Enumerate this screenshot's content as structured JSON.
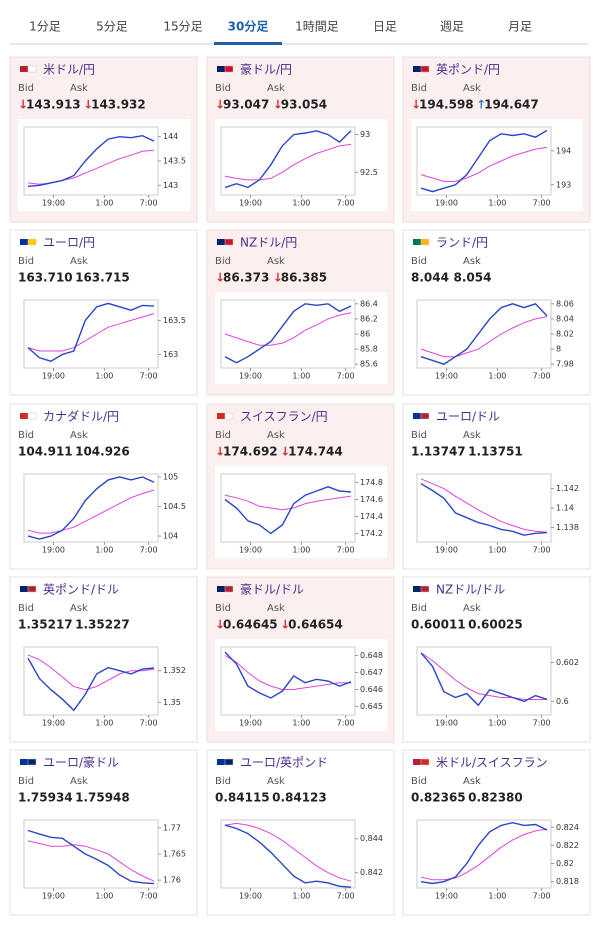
{
  "tabs": {
    "items": [
      "1分足",
      "5分足",
      "15分足",
      "30分足",
      "1時間足",
      "日足",
      "週足",
      "月足"
    ],
    "active": 3
  },
  "colors": {
    "price": "#2a45c8",
    "ma": "#dd44dd",
    "down": "#d33333",
    "up": "#2b7bd6"
  },
  "cards": [
    {
      "name": "米ドル/円",
      "bid_label": "Bid",
      "ask_label": "Ask",
      "bid": "143.913",
      "ask": "143.932",
      "bid_dir": "down",
      "ask_dir": "down",
      "chart": {
        "type": "line",
        "ylim": [
          142.8,
          144.2
        ],
        "yticks": [
          143,
          143.5,
          144
        ],
        "x_labels": [
          "19:00",
          "1:00",
          "7:00"
        ],
        "values": [
          142.98,
          143.0,
          143.05,
          143.1,
          143.2,
          143.5,
          143.75,
          143.95,
          144.0,
          143.98,
          144.02,
          143.91
        ],
        "ma": [
          143.05,
          143.02,
          143.05,
          143.1,
          143.15,
          143.25,
          143.35,
          143.45,
          143.55,
          143.62,
          143.7,
          143.72
        ]
      }
    },
    {
      "name": "豪ドル/円",
      "bid_label": "Bid",
      "ask_label": "Ask",
      "bid": "93.047",
      "ask": "93.054",
      "bid_dir": "down",
      "ask_dir": "down",
      "chart": {
        "type": "line",
        "ylim": [
          92.2,
          93.1
        ],
        "yticks": [
          92.5,
          93
        ],
        "x_labels": [
          "19:00",
          "1:00",
          "7:00"
        ],
        "values": [
          92.3,
          92.35,
          92.3,
          92.4,
          92.6,
          92.85,
          93.0,
          93.02,
          93.05,
          93.0,
          92.9,
          93.05
        ],
        "ma": [
          92.45,
          92.42,
          92.4,
          92.4,
          92.42,
          92.5,
          92.6,
          92.68,
          92.75,
          92.8,
          92.85,
          92.87
        ]
      }
    },
    {
      "name": "英ポンド/円",
      "bid_label": "Bid",
      "ask_label": "Ask",
      "bid": "194.598",
      "ask": "194.647",
      "bid_dir": "down",
      "ask_dir": "up",
      "chart": {
        "type": "line",
        "ylim": [
          192.7,
          194.7
        ],
        "yticks": [
          193,
          194
        ],
        "x_labels": [
          "19:00",
          "1:00",
          "7:00"
        ],
        "values": [
          192.9,
          192.8,
          192.9,
          193.0,
          193.3,
          193.8,
          194.3,
          194.5,
          194.45,
          194.5,
          194.4,
          194.6
        ],
        "ma": [
          193.3,
          193.2,
          193.1,
          193.1,
          193.2,
          193.35,
          193.55,
          193.7,
          193.85,
          193.95,
          194.05,
          194.1
        ]
      }
    },
    {
      "name": "ユーロ/円",
      "bid_label": "Bid",
      "ask_label": "Ask",
      "bid": "163.710",
      "ask": "163.715",
      "bid_dir": null,
      "ask_dir": null,
      "chart": {
        "type": "line",
        "ylim": [
          162.8,
          163.8
        ],
        "yticks": [
          163,
          163.5
        ],
        "x_labels": [
          "19:00",
          "1:00",
          "7:00"
        ],
        "values": [
          163.1,
          162.95,
          162.9,
          163.0,
          163.05,
          163.5,
          163.7,
          163.75,
          163.7,
          163.65,
          163.72,
          163.71
        ],
        "ma": [
          163.1,
          163.05,
          163.05,
          163.05,
          163.1,
          163.2,
          163.3,
          163.4,
          163.45,
          163.5,
          163.55,
          163.6
        ]
      }
    },
    {
      "name": "NZドル/円",
      "bid_label": "Bid",
      "ask_label": "Ask",
      "bid": "86.373",
      "ask": "86.385",
      "bid_dir": "down",
      "ask_dir": "down",
      "chart": {
        "type": "line",
        "ylim": [
          85.55,
          86.45
        ],
        "yticks": [
          85.6,
          85.8,
          86,
          86.2,
          86.4
        ],
        "x_labels": [
          "19:00",
          "1:00",
          "7:00"
        ],
        "values": [
          85.7,
          85.62,
          85.7,
          85.8,
          85.9,
          86.1,
          86.3,
          86.4,
          86.38,
          86.4,
          86.3,
          86.37
        ],
        "ma": [
          86.0,
          85.95,
          85.9,
          85.85,
          85.85,
          85.88,
          85.95,
          86.05,
          86.12,
          86.2,
          86.25,
          86.28
        ]
      }
    },
    {
      "name": "ランド/円",
      "bid_label": "Bid",
      "ask_label": "Ask",
      "bid": "8.044",
      "ask": "8.054",
      "bid_dir": null,
      "ask_dir": null,
      "chart": {
        "type": "line",
        "ylim": [
          7.975,
          8.065
        ],
        "yticks": [
          7.98,
          8,
          8.02,
          8.04,
          8.06
        ],
        "x_labels": [
          "19:00",
          "1:00",
          "7:00"
        ],
        "values": [
          7.99,
          7.985,
          7.98,
          7.99,
          8.0,
          8.02,
          8.04,
          8.055,
          8.06,
          8.055,
          8.06,
          8.044
        ],
        "ma": [
          8.0,
          7.995,
          7.99,
          7.99,
          7.995,
          8.0,
          8.01,
          8.02,
          8.028,
          8.035,
          8.04,
          8.043
        ]
      }
    },
    {
      "name": "カナダドル/円",
      "bid_label": "Bid",
      "ask_label": "Ask",
      "bid": "104.911",
      "ask": "104.926",
      "bid_dir": null,
      "ask_dir": null,
      "chart": {
        "type": "line",
        "ylim": [
          103.9,
          105.05
        ],
        "yticks": [
          104,
          104.5,
          105
        ],
        "x_labels": [
          "19:00",
          "1:00",
          "7:00"
        ],
        "values": [
          104.0,
          103.95,
          104.0,
          104.1,
          104.3,
          104.6,
          104.8,
          104.95,
          105.0,
          104.95,
          105.0,
          104.91
        ],
        "ma": [
          104.1,
          104.05,
          104.05,
          104.1,
          104.15,
          104.25,
          104.35,
          104.45,
          104.55,
          104.65,
          104.72,
          104.78
        ]
      }
    },
    {
      "name": "スイスフラン/円",
      "bid_label": "Bid",
      "ask_label": "Ask",
      "bid": "174.692",
      "ask": "174.744",
      "bid_dir": "down",
      "ask_dir": "down",
      "chart": {
        "type": "line",
        "ylim": [
          174.1,
          174.9
        ],
        "yticks": [
          174.2,
          174.4,
          174.6,
          174.8
        ],
        "x_labels": [
          "19:00",
          "1:00",
          "7:00"
        ],
        "values": [
          174.6,
          174.5,
          174.35,
          174.3,
          174.2,
          174.3,
          174.55,
          174.65,
          174.7,
          174.75,
          174.7,
          174.69
        ],
        "ma": [
          174.65,
          174.62,
          174.58,
          174.52,
          174.5,
          174.48,
          174.5,
          174.55,
          174.58,
          174.6,
          174.62,
          174.64
        ]
      }
    },
    {
      "name": "ユーロ/ドル",
      "bid_label": "Bid",
      "ask_label": "Ask",
      "bid": "1.13747",
      "ask": "1.13751",
      "bid_dir": null,
      "ask_dir": null,
      "chart": {
        "type": "line",
        "ylim": [
          1.1365,
          1.1435
        ],
        "yticks": [
          1.138,
          1.14,
          1.142
        ],
        "x_labels": [
          "19:00",
          "1:00",
          "7:00"
        ],
        "values": [
          1.1425,
          1.1418,
          1.141,
          1.1395,
          1.139,
          1.1385,
          1.1382,
          1.1378,
          1.1376,
          1.1372,
          1.1374,
          1.13747
        ],
        "ma": [
          1.143,
          1.1425,
          1.142,
          1.1412,
          1.1405,
          1.1398,
          1.1392,
          1.1386,
          1.1382,
          1.1378,
          1.1376,
          1.1375
        ]
      }
    },
    {
      "name": "英ポンド/ドル",
      "bid_label": "Bid",
      "ask_label": "Ask",
      "bid": "1.35217",
      "ask": "1.35227",
      "bid_dir": null,
      "ask_dir": null,
      "chart": {
        "type": "line",
        "ylim": [
          1.3492,
          1.3535
        ],
        "yticks": [
          1.35,
          1.352
        ],
        "x_labels": [
          "19:00",
          "1:00",
          "7:00"
        ],
        "values": [
          1.3528,
          1.3515,
          1.3508,
          1.3502,
          1.3495,
          1.3505,
          1.3518,
          1.3522,
          1.352,
          1.3518,
          1.3521,
          1.35217
        ],
        "ma": [
          1.353,
          1.3527,
          1.3522,
          1.3516,
          1.351,
          1.3508,
          1.351,
          1.3514,
          1.3518,
          1.352,
          1.352,
          1.3521
        ]
      }
    },
    {
      "name": "豪ドル/ドル",
      "bid_label": "Bid",
      "ask_label": "Ask",
      "bid": "0.64645",
      "ask": "0.64654",
      "bid_dir": "down",
      "ask_dir": "down",
      "chart": {
        "type": "line",
        "ylim": [
          0.6445,
          0.6485
        ],
        "yticks": [
          0.645,
          0.646,
          0.647,
          0.648
        ],
        "x_labels": [
          "19:00",
          "1:00",
          "7:00"
        ],
        "values": [
          0.6482,
          0.6475,
          0.6462,
          0.6458,
          0.6455,
          0.6459,
          0.6468,
          0.6464,
          0.6466,
          0.6465,
          0.6462,
          0.64645
        ],
        "ma": [
          0.648,
          0.6476,
          0.647,
          0.6465,
          0.6462,
          0.646,
          0.646,
          0.6461,
          0.6462,
          0.6463,
          0.6464,
          0.6464
        ]
      }
    },
    {
      "name": "NZドル/ドル",
      "bid_label": "Bid",
      "ask_label": "Ask",
      "bid": "0.60011",
      "ask": "0.60025",
      "bid_dir": null,
      "ask_dir": null,
      "chart": {
        "type": "line",
        "ylim": [
          0.5993,
          0.6028
        ],
        "yticks": [
          0.6,
          0.602
        ],
        "x_labels": [
          "19:00",
          "1:00",
          "7:00"
        ],
        "values": [
          0.6025,
          0.6018,
          0.6005,
          0.6002,
          0.6004,
          0.5998,
          0.6006,
          0.6004,
          0.6002,
          0.6,
          0.6003,
          0.60011
        ],
        "ma": [
          0.6025,
          0.6021,
          0.6016,
          0.6011,
          0.6007,
          0.6004,
          0.6003,
          0.6002,
          0.6002,
          0.6001,
          0.6001,
          0.6001
        ]
      }
    },
    {
      "name": "ユーロ/豪ドル",
      "bid_label": "Bid",
      "ask_label": "Ask",
      "bid": "1.75934",
      "ask": "1.75948",
      "bid_dir": null,
      "ask_dir": null,
      "chart": {
        "type": "line",
        "ylim": [
          1.7585,
          1.7715
        ],
        "yticks": [
          1.76,
          1.765,
          1.77
        ],
        "x_labels": [
          "19:00",
          "1:00",
          "7:00"
        ],
        "values": [
          1.7695,
          1.7688,
          1.7682,
          1.768,
          1.7665,
          1.765,
          1.764,
          1.7628,
          1.761,
          1.7598,
          1.7595,
          1.75934
        ],
        "ma": [
          1.7675,
          1.767,
          1.7665,
          1.7665,
          1.7668,
          1.7665,
          1.7658,
          1.765,
          1.7635,
          1.762,
          1.7608,
          1.7598
        ]
      }
    },
    {
      "name": "ユーロ/英ポンド",
      "bid_label": "Bid",
      "ask_label": "Ask",
      "bid": "0.84115",
      "ask": "0.84123",
      "bid_dir": null,
      "ask_dir": null,
      "chart": {
        "type": "line",
        "ylim": [
          0.8411,
          0.8451
        ],
        "yticks": [
          0.842,
          0.844
        ],
        "x_labels": [
          "19:00",
          "1:00",
          "7:00"
        ],
        "values": [
          0.8448,
          0.8446,
          0.8443,
          0.8438,
          0.8432,
          0.8425,
          0.8418,
          0.8414,
          0.8415,
          0.8414,
          0.8412,
          0.84115
        ],
        "ma": [
          0.8448,
          0.8449,
          0.8448,
          0.8446,
          0.8443,
          0.8439,
          0.8434,
          0.8429,
          0.8424,
          0.842,
          0.8417,
          0.8415
        ]
      }
    },
    {
      "name": "米ドル/スイスフラン",
      "bid_label": "Bid",
      "ask_label": "Ask",
      "bid": "0.82365",
      "ask": "0.82380",
      "bid_dir": null,
      "ask_dir": null,
      "chart": {
        "type": "line",
        "ylim": [
          0.8173,
          0.8248
        ],
        "yticks": [
          0.818,
          0.82,
          0.822,
          0.824
        ],
        "x_labels": [
          "19:00",
          "1:00",
          "7:00"
        ],
        "values": [
          0.818,
          0.8178,
          0.818,
          0.8185,
          0.82,
          0.822,
          0.8235,
          0.8242,
          0.8245,
          0.8242,
          0.8243,
          0.8237
        ],
        "ma": [
          0.8185,
          0.8182,
          0.8182,
          0.8184,
          0.819,
          0.8198,
          0.8208,
          0.8218,
          0.8226,
          0.8232,
          0.8236,
          0.8238
        ]
      }
    }
  ]
}
